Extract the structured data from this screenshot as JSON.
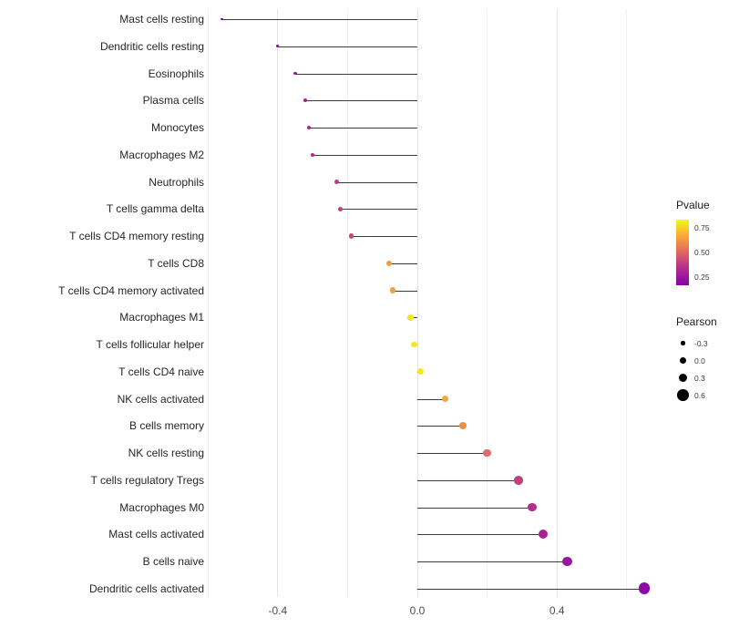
{
  "chart_data": {
    "type": "lollipop",
    "title": "",
    "xlabel": "",
    "ylabel": "",
    "x_ticks": [
      "-0.4",
      "0.0",
      "0.4"
    ],
    "x_tick_values": [
      -0.4,
      0.0,
      0.4
    ],
    "x_minor_values": [
      -0.6,
      -0.2,
      0.2,
      0.6
    ],
    "xlim": [
      -0.62,
      0.68
    ],
    "points": [
      {
        "label": "Mast cells resting",
        "pearson": -0.56,
        "pvalue": 0.05,
        "color": "#6E01A8"
      },
      {
        "label": "Dendritic cells resting",
        "pearson": -0.4,
        "pvalue": 0.12,
        "color": "#8606A6"
      },
      {
        "label": "Eosinophils",
        "pearson": -0.35,
        "pvalue": 0.18,
        "color": "#9C179E"
      },
      {
        "label": "Plasma cells",
        "pearson": -0.32,
        "pvalue": 0.22,
        "color": "#A62098"
      },
      {
        "label": "Monocytes",
        "pearson": -0.31,
        "pvalue": 0.25,
        "color": "#AB2494"
      },
      {
        "label": "Macrophages M2",
        "pearson": -0.3,
        "pvalue": 0.27,
        "color": "#B02991"
      },
      {
        "label": "Neutrophils",
        "pearson": -0.23,
        "pvalue": 0.33,
        "color": "#BF3984"
      },
      {
        "label": "T cells gamma delta",
        "pearson": -0.22,
        "pvalue": 0.34,
        "color": "#C23B82"
      },
      {
        "label": "T cells CD4 memory resting",
        "pearson": -0.19,
        "pvalue": 0.38,
        "color": "#CC4778"
      },
      {
        "label": "T cells CD8",
        "pearson": -0.08,
        "pvalue": 0.66,
        "color": "#EDA03C"
      },
      {
        "label": "T cells CD4 memory activated",
        "pearson": -0.07,
        "pvalue": 0.67,
        "color": "#EFA23F"
      },
      {
        "label": "Macrophages M1",
        "pearson": -0.02,
        "pvalue": 0.95,
        "color": "#F4E61E"
      },
      {
        "label": "T cells follicular helper",
        "pearson": -0.01,
        "pvalue": 0.96,
        "color": "#F6E620"
      },
      {
        "label": "T cells CD4 naive",
        "pearson": 0.01,
        "pvalue": 0.97,
        "color": "#F8E621"
      },
      {
        "label": "NK cells activated",
        "pearson": 0.08,
        "pvalue": 0.62,
        "color": "#F0A73D"
      },
      {
        "label": "B cells memory",
        "pearson": 0.13,
        "pvalue": 0.56,
        "color": "#EC9145"
      },
      {
        "label": "NK cells resting",
        "pearson": 0.2,
        "pvalue": 0.45,
        "color": "#DC6E6B"
      },
      {
        "label": "T cells regulatory  Tregs",
        "pearson": 0.29,
        "pvalue": 0.33,
        "color": "#C2407F"
      },
      {
        "label": "Macrophages M0",
        "pearson": 0.33,
        "pvalue": 0.27,
        "color": "#B42E8D"
      },
      {
        "label": "Mast cells activated",
        "pearson": 0.36,
        "pvalue": 0.23,
        "color": "#A82296"
      },
      {
        "label": "B cells naive",
        "pearson": 0.43,
        "pvalue": 0.17,
        "color": "#9716A0"
      },
      {
        "label": "Dendritic cells activated",
        "pearson": 0.65,
        "pvalue": 0.1,
        "color": "#8B0AA5"
      }
    ],
    "legend_pvalue": {
      "title": "Pvalue",
      "tick_labels": [
        "0.75",
        "0.50",
        "0.25"
      ],
      "gradient": [
        "#F0F921",
        "#FCA636",
        "#E16462",
        "#B12A90",
        "#8405A7"
      ]
    },
    "legend_pearson": {
      "title": "Pearson",
      "items": [
        {
          "label": "-0.3",
          "value": -0.3
        },
        {
          "label": "0.0",
          "value": 0.0
        },
        {
          "label": "0.3",
          "value": 0.3
        },
        {
          "label": "0.6",
          "value": 0.6
        }
      ]
    }
  }
}
